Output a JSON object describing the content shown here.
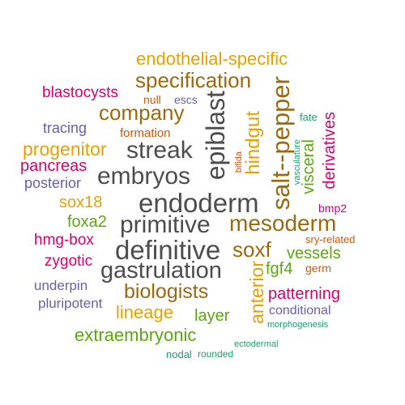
{
  "colors": {
    "gray": "#4d4d4d",
    "gold": "#e6a100",
    "brown": "#9a6a0c",
    "pink": "#d6006e",
    "purple": "#6b5ea8",
    "orange": "#d8540a",
    "green": "#5aa80e",
    "teal": "#1e9e6e"
  },
  "words": [
    {
      "id": "endodermal-specific",
      "text": "endothelial-specific",
      "color": "#e6a100"
    },
    {
      "id": "specification",
      "text": "specification",
      "color": "#9a6a0c"
    },
    {
      "id": "blastocysts",
      "text": "blastocysts",
      "color": "#d6006e"
    },
    {
      "id": "null",
      "text": "null",
      "color": "#d8540a"
    },
    {
      "id": "escs",
      "text": "escs",
      "color": "#6b5ea8"
    },
    {
      "id": "company",
      "text": "company",
      "color": "#9a6a0c"
    },
    {
      "id": "epiblast",
      "text": "epiblast",
      "color": "#4d4d4d"
    },
    {
      "id": "salt-pepper",
      "text": "salt--pepper",
      "color": "#9a6a0c"
    },
    {
      "id": "fate",
      "text": "fate",
      "color": "#1e9e6e"
    },
    {
      "id": "tracing",
      "text": "tracing",
      "color": "#6b5ea8"
    },
    {
      "id": "formation",
      "text": "formation",
      "color": "#d8540a"
    },
    {
      "id": "hindgut",
      "text": "hindgut",
      "color": "#e6a100"
    },
    {
      "id": "visceral",
      "text": "visceral",
      "color": "#5aa80e"
    },
    {
      "id": "derivatives",
      "text": "derivatives",
      "color": "#d6006e"
    },
    {
      "id": "progenitor",
      "text": "progenitor",
      "color": "#e6a100"
    },
    {
      "id": "streak",
      "text": "streak",
      "color": "#4d4d4d"
    },
    {
      "id": "bifida",
      "text": "bifida",
      "color": "#d8540a"
    },
    {
      "id": "vasculature",
      "text": "vasculature",
      "color": "#1e9e6e"
    },
    {
      "id": "pancreas",
      "text": "pancreas",
      "color": "#d6006e"
    },
    {
      "id": "posterior",
      "text": "posterior",
      "color": "#6b5ea8"
    },
    {
      "id": "embryos",
      "text": "embryos",
      "color": "#4d4d4d"
    },
    {
      "id": "sox18",
      "text": "sox18",
      "color": "#e6a100"
    },
    {
      "id": "endoderm",
      "text": "endoderm",
      "color": "#4d4d4d"
    },
    {
      "id": "bmp2",
      "text": "bmp2",
      "color": "#d6006e"
    },
    {
      "id": "foxa2",
      "text": "foxa2",
      "color": "#5aa80e"
    },
    {
      "id": "primitive",
      "text": "primitive",
      "color": "#4d4d4d"
    },
    {
      "id": "mesoderm",
      "text": "mesoderm",
      "color": "#9a6a0c"
    },
    {
      "id": "hmg-box",
      "text": "hmg-box",
      "color": "#d6006e"
    },
    {
      "id": "sry-related",
      "text": "sry-related",
      "color": "#d8540a"
    },
    {
      "id": "definitive",
      "text": "definitive",
      "color": "#4d4d4d"
    },
    {
      "id": "soxf",
      "text": "soxf",
      "color": "#9a6a0c"
    },
    {
      "id": "vessels",
      "text": "vessels",
      "color": "#5aa80e"
    },
    {
      "id": "zygotic",
      "text": "zygotic",
      "color": "#d6006e"
    },
    {
      "id": "germ",
      "text": "germ",
      "color": "#d8540a"
    },
    {
      "id": "gastrulation",
      "text": "gastrulation",
      "color": "#4d4d4d"
    },
    {
      "id": "anterior",
      "text": "anterior",
      "color": "#e6a100"
    },
    {
      "id": "fgf4",
      "text": "fgf4",
      "color": "#5aa80e"
    },
    {
      "id": "underpin",
      "text": "underpin",
      "color": "#6b5ea8"
    },
    {
      "id": "biologists",
      "text": "biologists",
      "color": "#9a6a0c"
    },
    {
      "id": "patterning",
      "text": "patterning",
      "color": "#d6006e"
    },
    {
      "id": "pluripotent",
      "text": "pluripotent",
      "color": "#6b5ea8"
    },
    {
      "id": "lineage",
      "text": "lineage",
      "color": "#e6a100"
    },
    {
      "id": "layer",
      "text": "layer",
      "color": "#5aa80e"
    },
    {
      "id": "conditional",
      "text": "conditional",
      "color": "#6b5ea8"
    },
    {
      "id": "morphogenesis",
      "text": "morphogenesis",
      "color": "#1e9e6e"
    },
    {
      "id": "extraembryonic",
      "text": "extraembryonic",
      "color": "#5aa80e"
    },
    {
      "id": "ectodermal",
      "text": "ectodermal",
      "color": "#1e9e6e"
    },
    {
      "id": "nodal",
      "text": "nodal",
      "color": "#1e9e6e"
    },
    {
      "id": "rounded",
      "text": "rounded",
      "color": "#1e9e6e"
    }
  ]
}
